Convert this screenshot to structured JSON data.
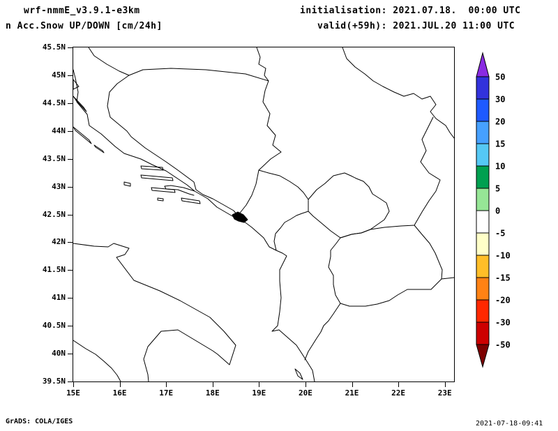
{
  "header": {
    "model": "wrf-nmmE_v3.9.1-e3km",
    "product": "n Acc.Snow UP/DOWN [cm/24h]",
    "init": "initialisation: 2021.07.18.  00:00 UTC",
    "valid": "valid(+59h): 2021.JUL.20 11:00 UTC"
  },
  "map": {
    "lat_labels": [
      "45.5N",
      "45N",
      "44.5N",
      "44N",
      "43.5N",
      "43N",
      "42.5N",
      "42N",
      "41.5N",
      "41N",
      "40.5N",
      "40N",
      "39.5N"
    ],
    "lon_labels": [
      "15E",
      "16E",
      "17E",
      "18E",
      "19E",
      "20E",
      "21E",
      "22E",
      "23E"
    ]
  },
  "colorbar": {
    "tick_labels": [
      "50",
      "30",
      "20",
      "15",
      "10",
      "5",
      "0",
      "-5",
      "-10",
      "-15",
      "-20",
      "-30",
      "-50"
    ],
    "arrow_top_color": "#8a2be2",
    "arrow_bottom_color": "#7d0000",
    "segment_colors": [
      "#3232dc",
      "#1e5aff",
      "#46a0ff",
      "#55c8f5",
      "#00a050",
      "#96e696",
      "#ffffff",
      "#ffffc8",
      "#ffbe28",
      "#ff8214",
      "#ff2800",
      "#cd0000"
    ]
  },
  "footer": {
    "left": "GrADS: COLA/IGES",
    "right": "2021-07-18-09:41"
  }
}
